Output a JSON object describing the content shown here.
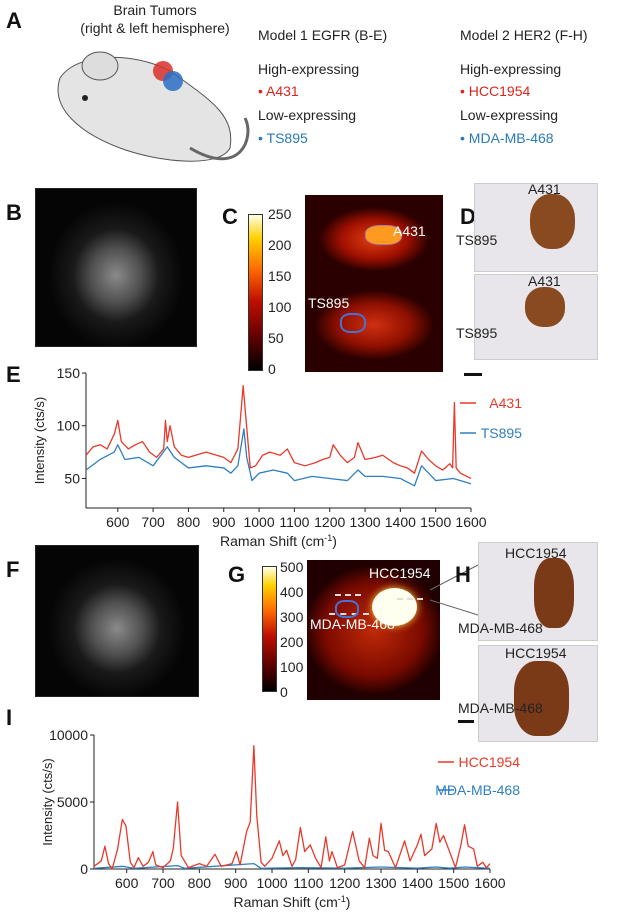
{
  "panels": {
    "a": "A",
    "b": "B",
    "c": "C",
    "d": "D",
    "e": "E",
    "f": "F",
    "g": "G",
    "h": "H",
    "i": "I"
  },
  "panel_a": {
    "title_line1": "Brain Tumors",
    "title_line2": "(right & left hemisphere)",
    "model1": {
      "title": "Model 1 EGFR (B-E)",
      "high": "High-expressing",
      "high_item": "• A431",
      "low": "Low-expressing",
      "low_item": "• TS895"
    },
    "model2": {
      "title": "Model 2 HER2 (F-H)",
      "high": "High-expressing",
      "high_item": "• HCC1954",
      "low": "Low-expressing",
      "low_item": "• MDA-MB-468"
    }
  },
  "panel_c": {
    "colorbar": [
      "250",
      "200",
      "150",
      "100",
      "50",
      "0"
    ],
    "label_high": "A431",
    "label_low": "TS895"
  },
  "panel_d": {
    "label_top1": "A431",
    "label_bot1": "TS895",
    "label_top2": "A431",
    "label_bot2": "TS895"
  },
  "panel_g": {
    "colorbar": [
      "500",
      "400",
      "300",
      "200",
      "100",
      "0"
    ],
    "label_high": "HCC1954",
    "label_low": "MDA-MB-468"
  },
  "panel_h": {
    "label_top1": "HCC1954",
    "label_mid": "MDA-MB-468",
    "label_top2": "HCC1954",
    "label_bot": "MDA-MB-468"
  },
  "colors": {
    "high": "#e8392a",
    "low": "#2f7fc1"
  },
  "chart_data": [
    {
      "type": "line",
      "panel": "E",
      "xlabel": "Raman Shift (cm",
      "xlabel_sup": "-1",
      "xlabel_end": ")",
      "ylabel": "Intensity (cts/s)",
      "xlim": [
        510,
        1600
      ],
      "ylim": [
        22,
        150
      ],
      "xticks": [
        600,
        700,
        800,
        900,
        1000,
        1100,
        1200,
        1300,
        1400,
        1500,
        1600
      ],
      "yticks": [
        50,
        100,
        150
      ],
      "legend": "top-right",
      "series": [
        {
          "name": "A431",
          "color": "#e8392a",
          "points": [
            [
              510,
              72
            ],
            [
              530,
              80
            ],
            [
              550,
              82
            ],
            [
              570,
              78
            ],
            [
              590,
              92
            ],
            [
              600,
              105
            ],
            [
              610,
              85
            ],
            [
              630,
              78
            ],
            [
              650,
              82
            ],
            [
              670,
              85
            ],
            [
              690,
              75
            ],
            [
              710,
              70
            ],
            [
              730,
              78
            ],
            [
              735,
              105
            ],
            [
              740,
              85
            ],
            [
              748,
              100
            ],
            [
              760,
              80
            ],
            [
              780,
              72
            ],
            [
              800,
              70
            ],
            [
              820,
              72
            ],
            [
              850,
              75
            ],
            [
              880,
              72
            ],
            [
              900,
              70
            ],
            [
              920,
              65
            ],
            [
              940,
              78
            ],
            [
              955,
              138
            ],
            [
              962,
              110
            ],
            [
              975,
              60
            ],
            [
              990,
              62
            ],
            [
              1010,
              72
            ],
            [
              1030,
              75
            ],
            [
              1060,
              72
            ],
            [
              1080,
              78
            ],
            [
              1100,
              65
            ],
            [
              1130,
              62
            ],
            [
              1160,
              65
            ],
            [
              1180,
              68
            ],
            [
              1200,
              70
            ],
            [
              1210,
              82
            ],
            [
              1230,
              72
            ],
            [
              1250,
              65
            ],
            [
              1270,
              70
            ],
            [
              1280,
              84
            ],
            [
              1300,
              68
            ],
            [
              1330,
              70
            ],
            [
              1350,
              72
            ],
            [
              1380,
              65
            ],
            [
              1400,
              62
            ],
            [
              1420,
              60
            ],
            [
              1440,
              55
            ],
            [
              1460,
              76
            ],
            [
              1480,
              68
            ],
            [
              1500,
              62
            ],
            [
              1520,
              58
            ],
            [
              1540,
              64
            ],
            [
              1548,
              60
            ],
            [
              1553,
              122
            ],
            [
              1558,
              60
            ],
            [
              1570,
              55
            ],
            [
              1600,
              50
            ]
          ]
        },
        {
          "name": "TS895",
          "color": "#2f7fc1",
          "points": [
            [
              510,
              58
            ],
            [
              550,
              68
            ],
            [
              590,
              75
            ],
            [
              600,
              82
            ],
            [
              620,
              68
            ],
            [
              660,
              70
            ],
            [
              700,
              62
            ],
            [
              740,
              80
            ],
            [
              760,
              70
            ],
            [
              800,
              60
            ],
            [
              850,
              62
            ],
            [
              900,
              60
            ],
            [
              920,
              55
            ],
            [
              940,
              62
            ],
            [
              957,
              97
            ],
            [
              965,
              70
            ],
            [
              980,
              48
            ],
            [
              1000,
              55
            ],
            [
              1040,
              58
            ],
            [
              1080,
              55
            ],
            [
              1100,
              48
            ],
            [
              1150,
              52
            ],
            [
              1200,
              50
            ],
            [
              1250,
              48
            ],
            [
              1280,
              58
            ],
            [
              1300,
              52
            ],
            [
              1350,
              52
            ],
            [
              1400,
              50
            ],
            [
              1440,
              43
            ],
            [
              1460,
              62
            ],
            [
              1480,
              55
            ],
            [
              1500,
              48
            ],
            [
              1550,
              50
            ],
            [
              1600,
              45
            ]
          ]
        }
      ]
    },
    {
      "type": "line",
      "panel": "I",
      "xlabel": "Raman Shift (cm",
      "xlabel_sup": "-1",
      "xlabel_end": ")",
      "ylabel": "Intensity (cts/s)",
      "xlim": [
        510,
        1600
      ],
      "ylim": [
        0,
        10000
      ],
      "xticks": [
        600,
        700,
        800,
        900,
        1000,
        1100,
        1200,
        1300,
        1400,
        1500,
        1600
      ],
      "yticks": [
        0,
        5000,
        10000
      ],
      "legend": "top-right",
      "series": [
        {
          "name": "HCC1954",
          "color": "#e8392a",
          "points": [
            [
              510,
              200
            ],
            [
              530,
              600
            ],
            [
              540,
              1700
            ],
            [
              550,
              400
            ],
            [
              560,
              0
            ],
            [
              575,
              1500
            ],
            [
              588,
              3700
            ],
            [
              598,
              3200
            ],
            [
              610,
              500
            ],
            [
              620,
              100
            ],
            [
              632,
              850
            ],
            [
              645,
              200
            ],
            [
              660,
              500
            ],
            [
              672,
              1300
            ],
            [
              680,
              300
            ],
            [
              700,
              100
            ],
            [
              720,
              600
            ],
            [
              728,
              1500
            ],
            [
              740,
              5000
            ],
            [
              750,
              1000
            ],
            [
              770,
              100
            ],
            [
              800,
              400
            ],
            [
              820,
              200
            ],
            [
              843,
              1100
            ],
            [
              860,
              200
            ],
            [
              890,
              400
            ],
            [
              902,
              1300
            ],
            [
              912,
              300
            ],
            [
              930,
              2800
            ],
            [
              940,
              3500
            ],
            [
              950,
              9200
            ],
            [
              958,
              4000
            ],
            [
              970,
              500
            ],
            [
              980,
              200
            ],
            [
              1000,
              800
            ],
            [
              1020,
              2100
            ],
            [
              1030,
              1000
            ],
            [
              1040,
              1400
            ],
            [
              1055,
              200
            ],
            [
              1065,
              700
            ],
            [
              1078,
              3100
            ],
            [
              1090,
              1300
            ],
            [
              1105,
              1800
            ],
            [
              1120,
              800
            ],
            [
              1135,
              100
            ],
            [
              1148,
              2400
            ],
            [
              1158,
              600
            ],
            [
              1165,
              1300
            ],
            [
              1180,
              100
            ],
            [
              1200,
              300
            ],
            [
              1222,
              2800
            ],
            [
              1240,
              600
            ],
            [
              1255,
              100
            ],
            [
              1268,
              2300
            ],
            [
              1278,
              1000
            ],
            [
              1290,
              800
            ],
            [
              1300,
              3400
            ],
            [
              1310,
              1400
            ],
            [
              1320,
              1300
            ],
            [
              1340,
              100
            ],
            [
              1355,
              1300
            ],
            [
              1365,
              2100
            ],
            [
              1380,
              600
            ],
            [
              1400,
              1800
            ],
            [
              1410,
              2600
            ],
            [
              1420,
              1000
            ],
            [
              1440,
              1500
            ],
            [
              1452,
              3400
            ],
            [
              1462,
              2000
            ],
            [
              1472,
              2500
            ],
            [
              1490,
              1200
            ],
            [
              1505,
              100
            ],
            [
              1520,
              1800
            ],
            [
              1530,
              3300
            ],
            [
              1540,
              1700
            ],
            [
              1555,
              1500
            ],
            [
              1565,
              200
            ],
            [
              1580,
              500
            ],
            [
              1590,
              100
            ],
            [
              1600,
              400
            ]
          ]
        },
        {
          "name": "MDA-MB-468",
          "color": "#2f7fc1",
          "points": [
            [
              510,
              50
            ],
            [
              590,
              200
            ],
            [
              620,
              50
            ],
            [
              740,
              250
            ],
            [
              760,
              50
            ],
            [
              950,
              400
            ],
            [
              970,
              50
            ],
            [
              1080,
              100
            ],
            [
              1200,
              60
            ],
            [
              1300,
              150
            ],
            [
              1400,
              60
            ],
            [
              1450,
              150
            ],
            [
              1490,
              60
            ],
            [
              1530,
              150
            ],
            [
              1600,
              50
            ]
          ]
        }
      ]
    }
  ]
}
